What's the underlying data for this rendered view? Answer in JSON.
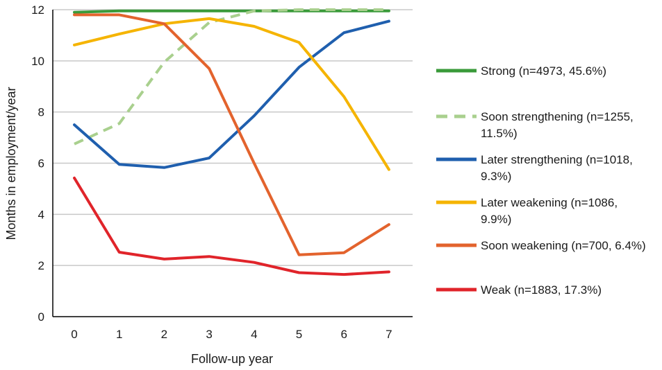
{
  "chart_data": {
    "type": "line",
    "xlabel": "Follow-up year",
    "ylabel": "Months in employment/year",
    "x": [
      0,
      1,
      2,
      3,
      4,
      5,
      6,
      7
    ],
    "ylim": [
      0,
      12
    ],
    "yticks": [
      0,
      2,
      4,
      6,
      8,
      10,
      12
    ],
    "grid": "horizontal",
    "legend_position": "right",
    "series": [
      {
        "name": "Strong (n=4973, 45.6%)",
        "name_lines": [
          "Strong (n=4973, 45.6%)"
        ],
        "color": "#3a9a3a",
        "dashed": false,
        "values": [
          11.9,
          11.95,
          11.95,
          11.95,
          11.95,
          11.95,
          11.95,
          11.95
        ]
      },
      {
        "name": "Soon strengthening (n=1255, 11.5%)",
        "name_lines": [
          "Soon strengthening (n=1255,",
          "11.5%)"
        ],
        "color": "#a9d08e",
        "dashed": true,
        "values": [
          6.75,
          7.55,
          9.95,
          11.5,
          11.95,
          12.0,
          12.0,
          12.0
        ]
      },
      {
        "name": "Later strengthening (n=1018, 9.3%)",
        "name_lines": [
          "Later strengthening (n=1018,",
          "9.3%)"
        ],
        "color": "#1f5fae",
        "dashed": false,
        "values": [
          7.5,
          5.95,
          5.83,
          6.2,
          7.85,
          9.75,
          11.1,
          11.55
        ]
      },
      {
        "name": "Later weakening (n=1086, 9.9%)",
        "name_lines": [
          "Later weakening (n=1086,",
          "9.9%)"
        ],
        "color": "#f5b400",
        "dashed": false,
        "values": [
          10.62,
          11.05,
          11.45,
          11.65,
          11.35,
          10.72,
          8.6,
          5.75
        ]
      },
      {
        "name": "Soon weakening (n=700, 6.4%)",
        "name_lines": [
          "Soon weakening (n=700, 6.4%)"
        ],
        "color": "#e3632d",
        "dashed": false,
        "values": [
          11.8,
          11.8,
          11.45,
          9.7,
          6.0,
          2.42,
          2.5,
          3.6
        ]
      },
      {
        "name": "Weak (n=1883, 17.3%)",
        "name_lines": [
          "Weak (n=1883, 17.3%)"
        ],
        "color": "#e0242a",
        "dashed": false,
        "values": [
          5.42,
          2.52,
          2.25,
          2.35,
          2.12,
          1.72,
          1.65,
          1.75
        ]
      }
    ]
  }
}
